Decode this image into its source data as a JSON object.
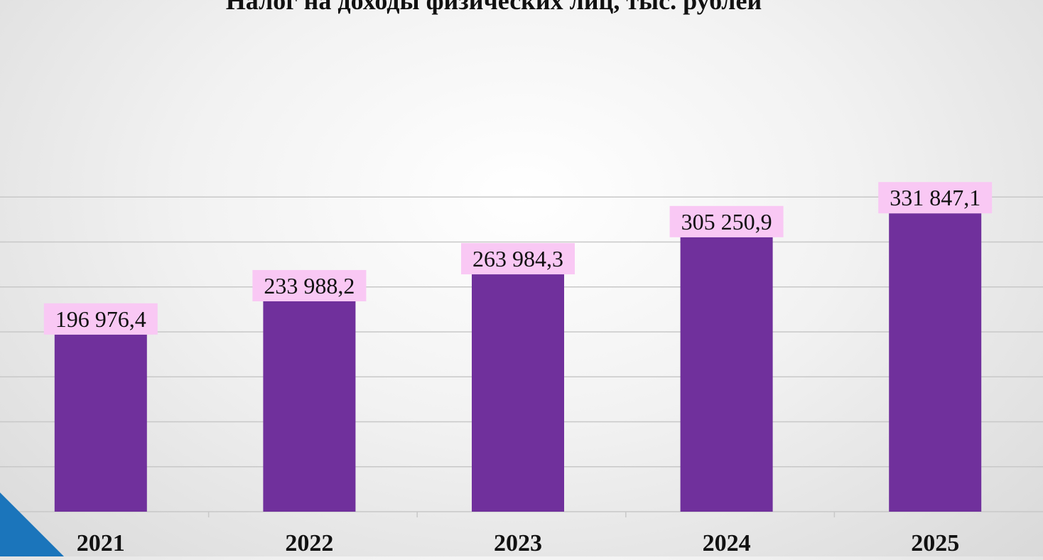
{
  "chart_data": {
    "type": "bar",
    "title": "Налог на доходы физических лиц, тыс. рублей",
    "categories": [
      "2021",
      "2022",
      "2023",
      "2024",
      "2025"
    ],
    "values": [
      196976.4,
      233988.2,
      263984.3,
      305250.9,
      331847.1
    ],
    "data_labels": [
      "196 976,4",
      "233 988,2",
      "263 984,3",
      "305 250,9",
      "331 847,1"
    ],
    "ylim": [
      0,
      350000
    ],
    "grid": true,
    "legend": "none",
    "xlabel": "",
    "ylabel": ""
  },
  "colors": {
    "bar": "#70309c",
    "label_bg": "#f9c8f4",
    "grid": "#c8c8c8",
    "accent": "#1b75bb"
  }
}
